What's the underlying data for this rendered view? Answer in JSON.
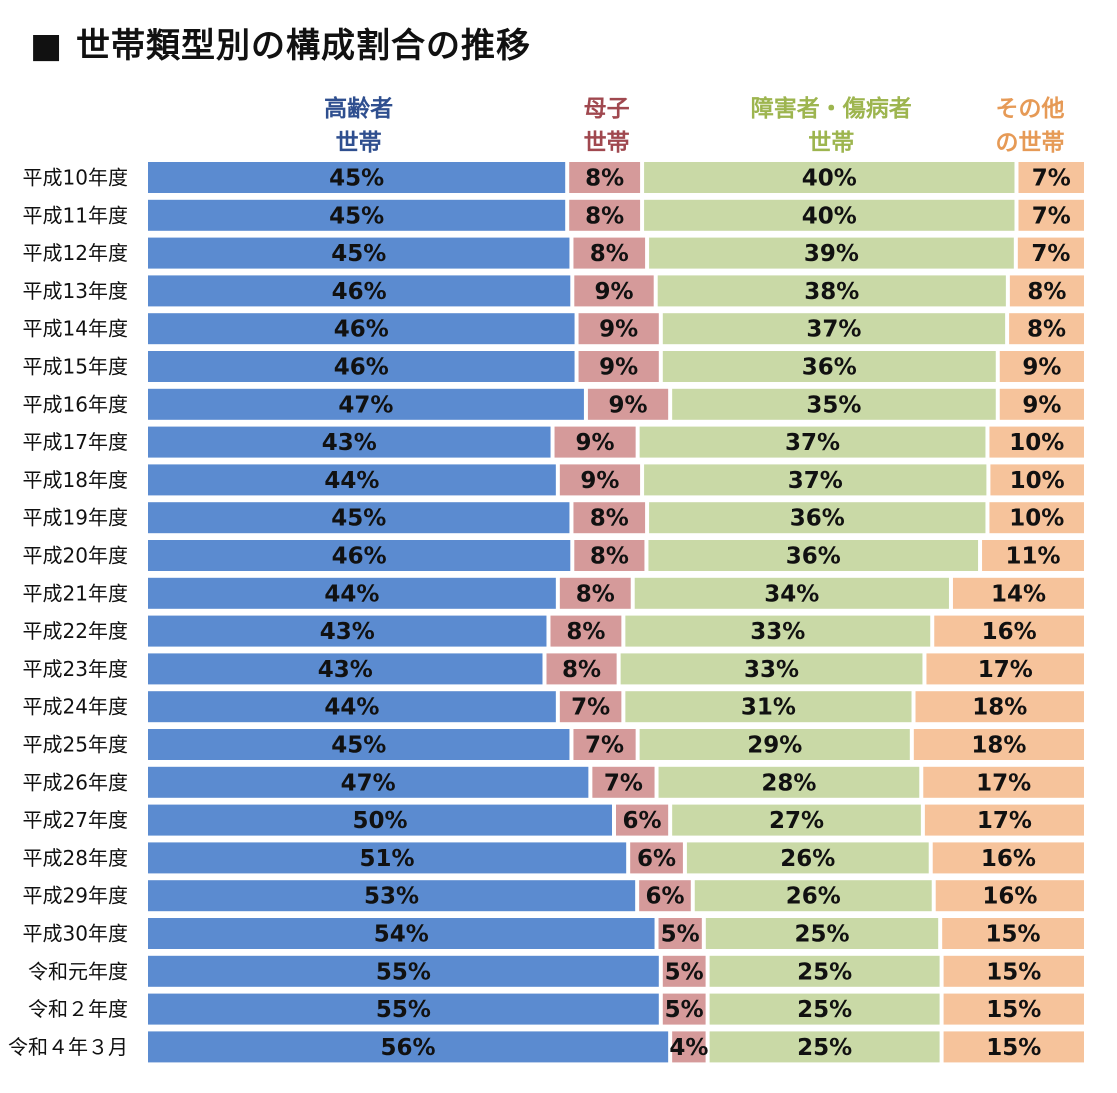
{
  "title": "■ 世帯類型別の構成割合の推移",
  "chart_data": {
    "type": "bar",
    "stacked": "100%",
    "orientation": "horizontal",
    "categories": [
      "平成10年度",
      "平成11年度",
      "平成12年度",
      "平成13年度",
      "平成14年度",
      "平成15年度",
      "平成16年度",
      "平成17年度",
      "平成18年度",
      "平成19年度",
      "平成20年度",
      "平成21年度",
      "平成22年度",
      "平成23年度",
      "平成24年度",
      "平成25年度",
      "平成26年度",
      "平成27年度",
      "平成28年度",
      "平成29年度",
      "平成30年度",
      "令和元年度",
      "令和２年度",
      "令和４年３月"
    ],
    "series": [
      {
        "name": "高齢者世帯",
        "name_lines": [
          "高齢者",
          "世帯"
        ],
        "color": "#5b8bd0",
        "head_color": "#2f4f8f",
        "values": [
          45,
          45,
          45,
          46,
          46,
          46,
          47,
          43,
          44,
          45,
          46,
          44,
          43,
          43,
          44,
          45,
          47,
          50,
          51,
          53,
          54,
          55,
          55,
          56
        ]
      },
      {
        "name": "母子世帯",
        "name_lines": [
          "母子",
          "世帯"
        ],
        "color": "#d59a9a",
        "head_color": "#a0484f",
        "values": [
          8,
          8,
          8,
          9,
          9,
          9,
          9,
          9,
          9,
          8,
          8,
          8,
          8,
          8,
          7,
          7,
          7,
          6,
          6,
          6,
          5,
          5,
          5,
          4
        ]
      },
      {
        "name": "障害者・傷病者世帯",
        "name_lines": [
          "障害者・傷病者",
          "世帯"
        ],
        "color": "#c9d9a6",
        "head_color": "#9db54f",
        "values": [
          40,
          40,
          39,
          38,
          37,
          36,
          35,
          37,
          37,
          36,
          36,
          34,
          33,
          33,
          31,
          29,
          28,
          27,
          26,
          26,
          25,
          25,
          25,
          25
        ]
      },
      {
        "name": "その他の世帯",
        "name_lines": [
          "その他",
          "の世帯"
        ],
        "color": "#f6c39b",
        "head_color": "#e69a56",
        "values": [
          7,
          7,
          7,
          8,
          8,
          9,
          9,
          10,
          10,
          10,
          11,
          14,
          16,
          17,
          18,
          18,
          17,
          17,
          16,
          16,
          15,
          15,
          15,
          15
        ]
      }
    ],
    "value_suffix": "%"
  }
}
